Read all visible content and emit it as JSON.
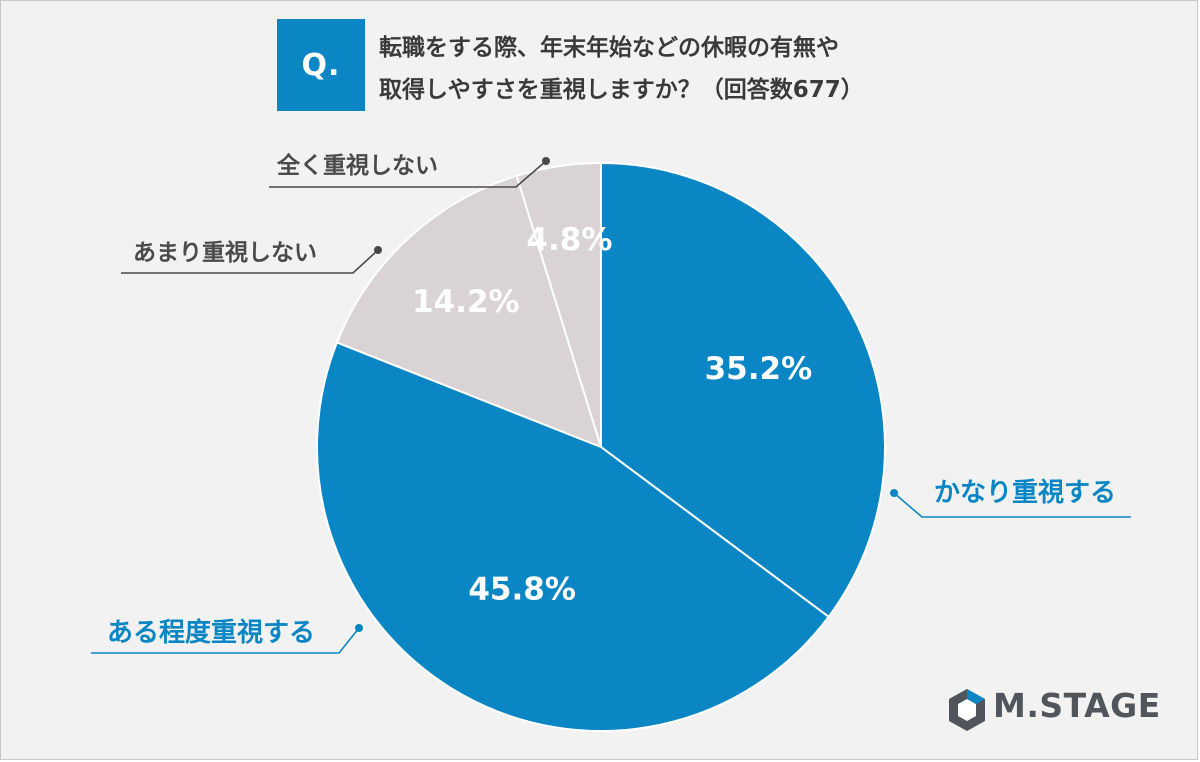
{
  "question": {
    "badge": "Q.",
    "line1": "転職をする際、年末年始などの休暇の有無や",
    "line2": "取得しやすさを重視しますか？（回答数677）"
  },
  "logo": {
    "text": "M.STAGE",
    "color": "#4f555b"
  },
  "colors": {
    "blue": "#0a86c5",
    "gray": "#d9d3d6",
    "label_blue": "#0a86c5",
    "label_gray": "#4a4a4a",
    "value_text": "#ffffff",
    "leader": "#4a4a4a"
  },
  "chart_data": {
    "type": "pie",
    "start": "12 o'clock",
    "direction": "clockwise",
    "slices": [
      {
        "label": "かなり重視する",
        "value": 35.2,
        "value_label": "35.2%",
        "color": "#0a86c5"
      },
      {
        "label": "ある程度重視する",
        "value": 45.8,
        "value_label": "45.8%",
        "color": "#0a86c5"
      },
      {
        "label": "あまり重視しない",
        "value": 14.2,
        "value_label": "14.2%",
        "color": "#d9d3d6"
      },
      {
        "label": "全く重視しない",
        "value": 4.8,
        "value_label": "4.8%",
        "color": "#d9d3d6"
      }
    ]
  }
}
